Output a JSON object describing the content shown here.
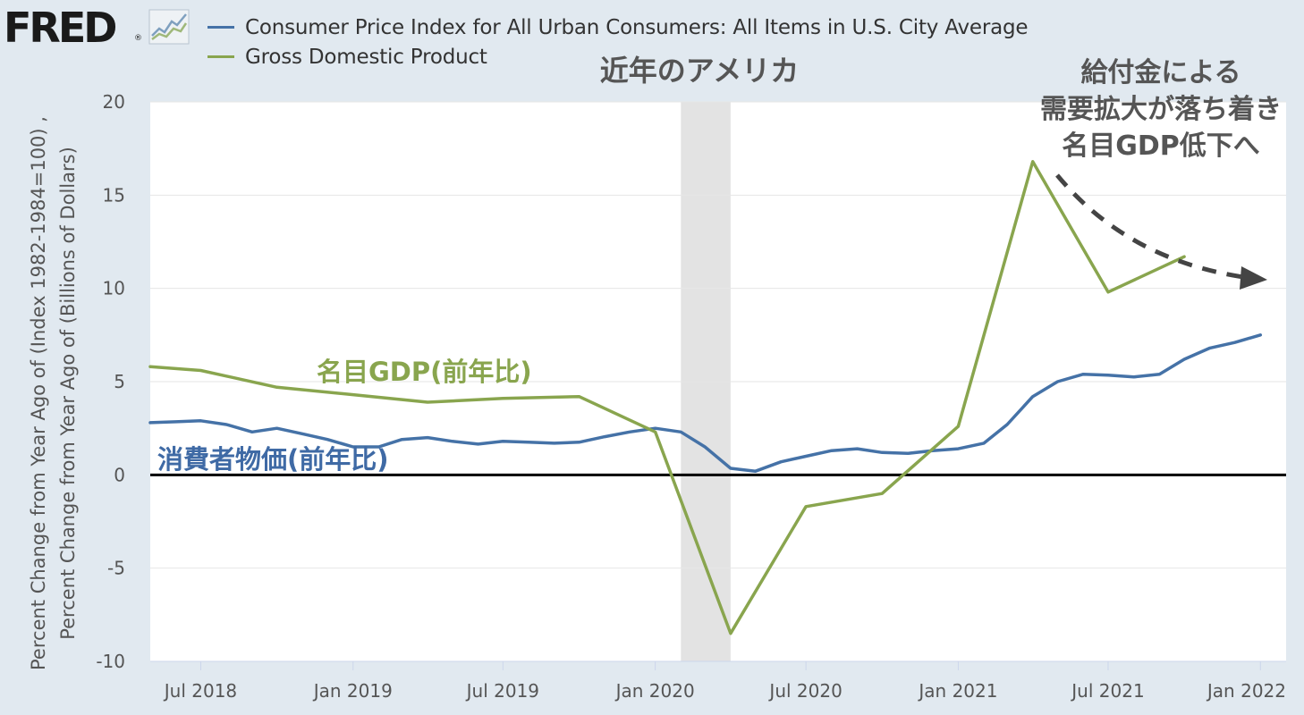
{
  "header": {
    "logo_text": "FRED",
    "logo_registered": "®",
    "logo_icon": "line-chart-icon"
  },
  "legend": [
    {
      "label": "Consumer Price Index for All Urban Consumers: All Items in U.S. City Average",
      "color": "#4572a7"
    },
    {
      "label": "Gross Domestic Product",
      "color": "#89a54e"
    }
  ],
  "annotations": {
    "title": "近年のアメリカ",
    "gdp_label": "名目GDP(前年比)",
    "cpi_label": "消費者物価(前年比)",
    "note_lines": [
      "給付金による",
      "需要拡大が落ち着き",
      "名目GDP低下へ"
    ]
  },
  "chart_data": {
    "type": "line",
    "ylabel": "Percent Change from Year Ago of (Index 1982-1984=100) , Percent Change from Year Ago of (Billions of Dollars)",
    "ylim": [
      -10,
      20
    ],
    "yticks": [
      20,
      15,
      10,
      5,
      0,
      -5,
      -10
    ],
    "xlim": [
      "2018-05-01",
      "2022-02-01"
    ],
    "xticks": [
      {
        "date": "2018-07-01",
        "label": "Jul 2018"
      },
      {
        "date": "2019-01-01",
        "label": "Jan 2019"
      },
      {
        "date": "2019-07-01",
        "label": "Jul 2019"
      },
      {
        "date": "2020-01-01",
        "label": "Jan 2020"
      },
      {
        "date": "2020-07-01",
        "label": "Jul 2020"
      },
      {
        "date": "2021-01-01",
        "label": "Jan 2021"
      },
      {
        "date": "2021-07-01",
        "label": "Jul 2021"
      },
      {
        "date": "2022-01-01",
        "label": "Jan 2022"
      }
    ],
    "recession": {
      "start": "2020-02-01",
      "end": "2020-04-01"
    },
    "grid": true,
    "zero_line": true,
    "series": [
      {
        "name": "Consumer Price Index for All Urban Consumers: All Items in U.S. City Average",
        "color": "#4572a7",
        "points": [
          [
            "2018-05-01",
            2.8
          ],
          [
            "2018-06-01",
            2.85
          ],
          [
            "2018-07-01",
            2.9
          ],
          [
            "2018-08-01",
            2.7
          ],
          [
            "2018-09-01",
            2.3
          ],
          [
            "2018-10-01",
            2.5
          ],
          [
            "2018-11-01",
            2.2
          ],
          [
            "2018-12-01",
            1.9
          ],
          [
            "2019-01-01",
            1.5
          ],
          [
            "2019-02-01",
            1.5
          ],
          [
            "2019-03-01",
            1.9
          ],
          [
            "2019-04-01",
            2.0
          ],
          [
            "2019-05-01",
            1.8
          ],
          [
            "2019-06-01",
            1.65
          ],
          [
            "2019-07-01",
            1.8
          ],
          [
            "2019-08-01",
            1.75
          ],
          [
            "2019-09-01",
            1.7
          ],
          [
            "2019-10-01",
            1.75
          ],
          [
            "2019-11-01",
            2.05
          ],
          [
            "2019-12-01",
            2.3
          ],
          [
            "2020-01-01",
            2.5
          ],
          [
            "2020-02-01",
            2.3
          ],
          [
            "2020-03-01",
            1.5
          ],
          [
            "2020-04-01",
            0.35
          ],
          [
            "2020-05-01",
            0.2
          ],
          [
            "2020-06-01",
            0.7
          ],
          [
            "2020-07-01",
            1.0
          ],
          [
            "2020-08-01",
            1.3
          ],
          [
            "2020-09-01",
            1.4
          ],
          [
            "2020-10-01",
            1.2
          ],
          [
            "2020-11-01",
            1.15
          ],
          [
            "2020-12-01",
            1.3
          ],
          [
            "2021-01-01",
            1.4
          ],
          [
            "2021-02-01",
            1.7
          ],
          [
            "2021-03-01",
            2.7
          ],
          [
            "2021-04-01",
            4.2
          ],
          [
            "2021-05-01",
            5.0
          ],
          [
            "2021-06-01",
            5.4
          ],
          [
            "2021-07-01",
            5.35
          ],
          [
            "2021-08-01",
            5.25
          ],
          [
            "2021-09-01",
            5.4
          ],
          [
            "2021-10-01",
            6.2
          ],
          [
            "2021-11-01",
            6.8
          ],
          [
            "2021-12-01",
            7.1
          ],
          [
            "2022-01-01",
            7.5
          ]
        ]
      },
      {
        "name": "Gross Domestic Product",
        "color": "#89a54e",
        "points": [
          [
            "2018-05-01",
            5.8
          ],
          [
            "2018-07-01",
            5.6
          ],
          [
            "2018-10-01",
            4.7
          ],
          [
            "2019-01-01",
            4.3
          ],
          [
            "2019-04-01",
            3.9
          ],
          [
            "2019-07-01",
            4.1
          ],
          [
            "2019-10-01",
            4.2
          ],
          [
            "2020-01-01",
            2.3
          ],
          [
            "2020-04-01",
            -8.5
          ],
          [
            "2020-07-01",
            -1.7
          ],
          [
            "2020-10-01",
            -1.0
          ],
          [
            "2021-01-01",
            2.6
          ],
          [
            "2021-04-01",
            16.8
          ],
          [
            "2021-07-01",
            9.8
          ],
          [
            "2021-10-01",
            11.7
          ]
        ]
      }
    ]
  }
}
